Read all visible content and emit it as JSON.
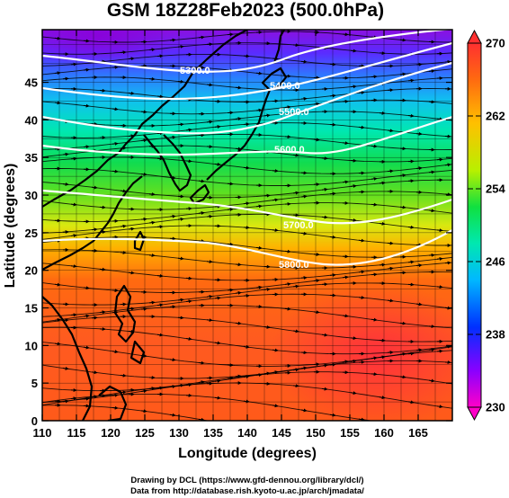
{
  "chart_data": {
    "type": "heatmap",
    "title": "GSM 18Z28Feb2023 (500.0hPa)",
    "xlabel": "Longitude (degrees)",
    "ylabel": "Latitude (degrees)",
    "xlim": [
      110,
      170
    ],
    "ylim": [
      0,
      52
    ],
    "x_ticks": [
      "110",
      "115",
      "120",
      "125",
      "130",
      "135",
      "140",
      "145",
      "150",
      "155",
      "160",
      "165"
    ],
    "y_ticks": [
      "0",
      "5",
      "10",
      "15",
      "20",
      "25",
      "30",
      "35",
      "40",
      "45"
    ],
    "colorbar": {
      "range": [
        230,
        270
      ],
      "tick_labels": [
        "270",
        "262",
        "254",
        "246",
        "238",
        "230"
      ],
      "colors": [
        "#ff00c8",
        "#9000ff",
        "#0018ff",
        "#00b4ff",
        "#00f0c8",
        "#00e040",
        "#b4f000",
        "#ffc800",
        "#ff5000",
        "#ff2828"
      ]
    },
    "contours": [
      {
        "label": "5300.0"
      },
      {
        "label": "5400.0"
      },
      {
        "label": "5500.0"
      },
      {
        "label": "5600.0"
      },
      {
        "label": "5700.0"
      },
      {
        "label": "5800.0"
      }
    ],
    "credits": [
      "Drawing by DCL (https://www.gfd-dennou.org/library/dcl/)",
      "Data from http://database.rish.kyoto-u.ac.jp/arch/jmadata/"
    ]
  }
}
